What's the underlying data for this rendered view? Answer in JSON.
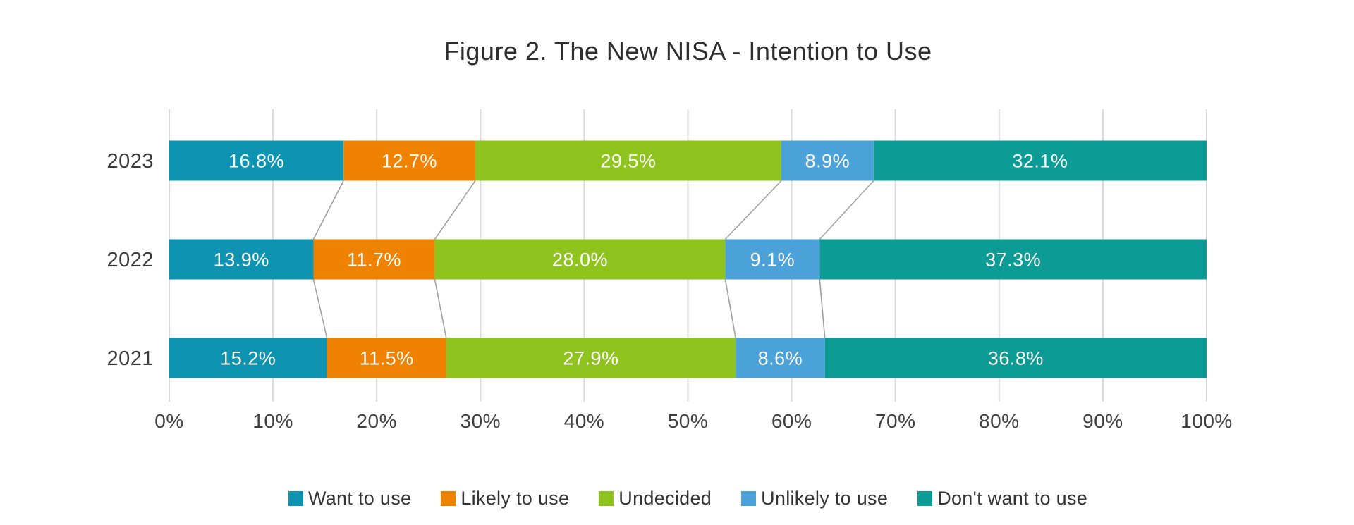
{
  "chart_data": {
    "type": "bar",
    "orientation": "horizontal",
    "stacked": true,
    "title": "Figure 2. The New NISA - Intention to Use",
    "categories": [
      "2023",
      "2022",
      "2021"
    ],
    "series": [
      {
        "name": "Want to use",
        "color": "#0e94b0",
        "values": [
          16.8,
          13.9,
          15.2
        ]
      },
      {
        "name": "Likely to use",
        "color": "#ef8200",
        "values": [
          12.7,
          11.7,
          11.5
        ]
      },
      {
        "name": "Undecided",
        "color": "#8fc31e",
        "values": [
          29.5,
          28.0,
          27.9
        ]
      },
      {
        "name": "Unlikely to use",
        "color": "#4ba2d9",
        "values": [
          8.9,
          9.1,
          8.6
        ]
      },
      {
        "name": "Don't want to use",
        "color": "#0d9b95",
        "values": [
          32.1,
          37.3,
          36.8
        ]
      }
    ],
    "xlabel": "",
    "ylabel": "",
    "x_axis": {
      "min": 0,
      "max": 100,
      "tick_step": 10,
      "tick_suffix": "%"
    },
    "tick_labels": [
      "0%",
      "10%",
      "20%",
      "30%",
      "40%",
      "50%",
      "60%",
      "70%",
      "80%",
      "90%",
      "100%"
    ],
    "value_label_suffix": "%",
    "value_label_decimals": 1,
    "grid": "vertical",
    "legend_position": "bottom",
    "connector_lines": true,
    "style": {
      "gridline_color": "#d8d8d8",
      "connector_color": "#a0a0a0",
      "bar_label_color": "#ffffff",
      "axis_text_color": "#404040",
      "category_text_color": "#3a3a3a",
      "title_color": "#2e2e2e",
      "background": "#ffffff"
    }
  }
}
